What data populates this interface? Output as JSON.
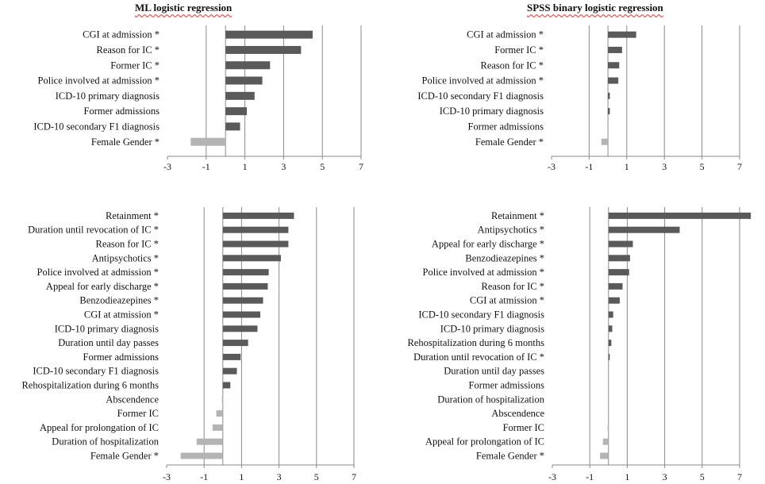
{
  "figure": {
    "left_title": "ML logistic regression",
    "right_title": "SPSS binary logistic regression"
  },
  "chart_data": [
    {
      "type": "bar",
      "orientation": "horizontal",
      "title": "ML logistic regression",
      "xlim": [
        -3,
        7
      ],
      "xticks": [
        -3,
        -1,
        1,
        3,
        5,
        7
      ],
      "categories": [
        "CGI at admission *",
        "Reason for IC *",
        "Former IC *",
        "Police involved at admission *",
        "ICD-10 primary diagnosis",
        "Former admissions",
        "ICD-10 secondary F1 diagnosis",
        "Female Gender *"
      ],
      "values": [
        4.5,
        3.9,
        2.3,
        1.9,
        1.5,
        1.1,
        0.75,
        -1.8
      ],
      "colors": {
        "positive": "#5a5a5a",
        "negative": "#b4b4b4"
      }
    },
    {
      "type": "bar",
      "orientation": "horizontal",
      "title": "SPSS binary logistic regression",
      "xlim": [
        -3,
        7
      ],
      "xticks": [
        -3,
        -1,
        1,
        3,
        5,
        7
      ],
      "categories": [
        "CGI at admission *",
        "Former IC *",
        "Reason for IC *",
        "Police involved at admission *",
        "ICD-10 secondary F1 diagnosis",
        "ICD-10 primary diagnosis",
        "Former admissions",
        "Female Gender *"
      ],
      "values": [
        1.5,
        0.75,
        0.6,
        0.55,
        0.1,
        0.1,
        0.0,
        -0.35
      ],
      "colors": {
        "positive": "#5a5a5a",
        "negative": "#b4b4b4"
      }
    },
    {
      "type": "bar",
      "orientation": "horizontal",
      "title": "ML logistic regression",
      "xlim": [
        -3,
        7
      ],
      "xticks": [
        -3,
        -1,
        1,
        3,
        5,
        7
      ],
      "categories": [
        "Retainment *",
        "Duration until revocation of IC *",
        "Reason for IC *",
        "Antipsychotics *",
        "Police involved at admission *",
        "Appeal for early discharge *",
        "Benzodieazepines *",
        "CGI at atmission *",
        "ICD-10 primary diagnosis",
        "Duration until day passes",
        "Former admissions",
        "ICD-10 secondary F1 diagnosis",
        "Rehospitalization during 6 months",
        "Abscendence",
        "Former IC",
        "Appeal for prolongation of IC",
        "Duration of hospitalization",
        "Female Gender *"
      ],
      "values": [
        3.8,
        3.5,
        3.5,
        3.1,
        2.45,
        2.4,
        2.15,
        2.0,
        1.85,
        1.35,
        0.95,
        0.75,
        0.4,
        -0.05,
        -0.35,
        -0.55,
        -1.4,
        -2.25
      ],
      "colors": {
        "positive": "#5a5a5a",
        "negative": "#b4b4b4"
      }
    },
    {
      "type": "bar",
      "orientation": "horizontal",
      "title": "SPSS binary logistic regression",
      "xlim": [
        -3,
        7
      ],
      "xticks": [
        -3,
        -1,
        1,
        3,
        5,
        7
      ],
      "categories": [
        "Retainment *",
        "Antipsychotics *",
        "Appeal for early discharge *",
        "Benzodieazepines *",
        "Police involved at admission *",
        "Reason for IC *",
        "CGI at atmission *",
        "ICD-10 secondary F1 diagnosis",
        "ICD-10 primary diagnosis",
        "Rehospitalization during 6 months",
        "Duration until revocation of IC *",
        "Duration until day passes",
        "Former admissions",
        "Duration of hospitalization",
        "Abscendence",
        "Former IC",
        "Appeal for prolongation of IC",
        "Female Gender *"
      ],
      "values": [
        7.6,
        3.8,
        1.3,
        1.15,
        1.1,
        0.75,
        0.6,
        0.25,
        0.2,
        0.15,
        0.05,
        0.0,
        0.0,
        0.0,
        0.0,
        -0.05,
        -0.3,
        -0.45
      ],
      "colors": {
        "positive": "#5a5a5a",
        "negative": "#b4b4b4"
      }
    }
  ]
}
